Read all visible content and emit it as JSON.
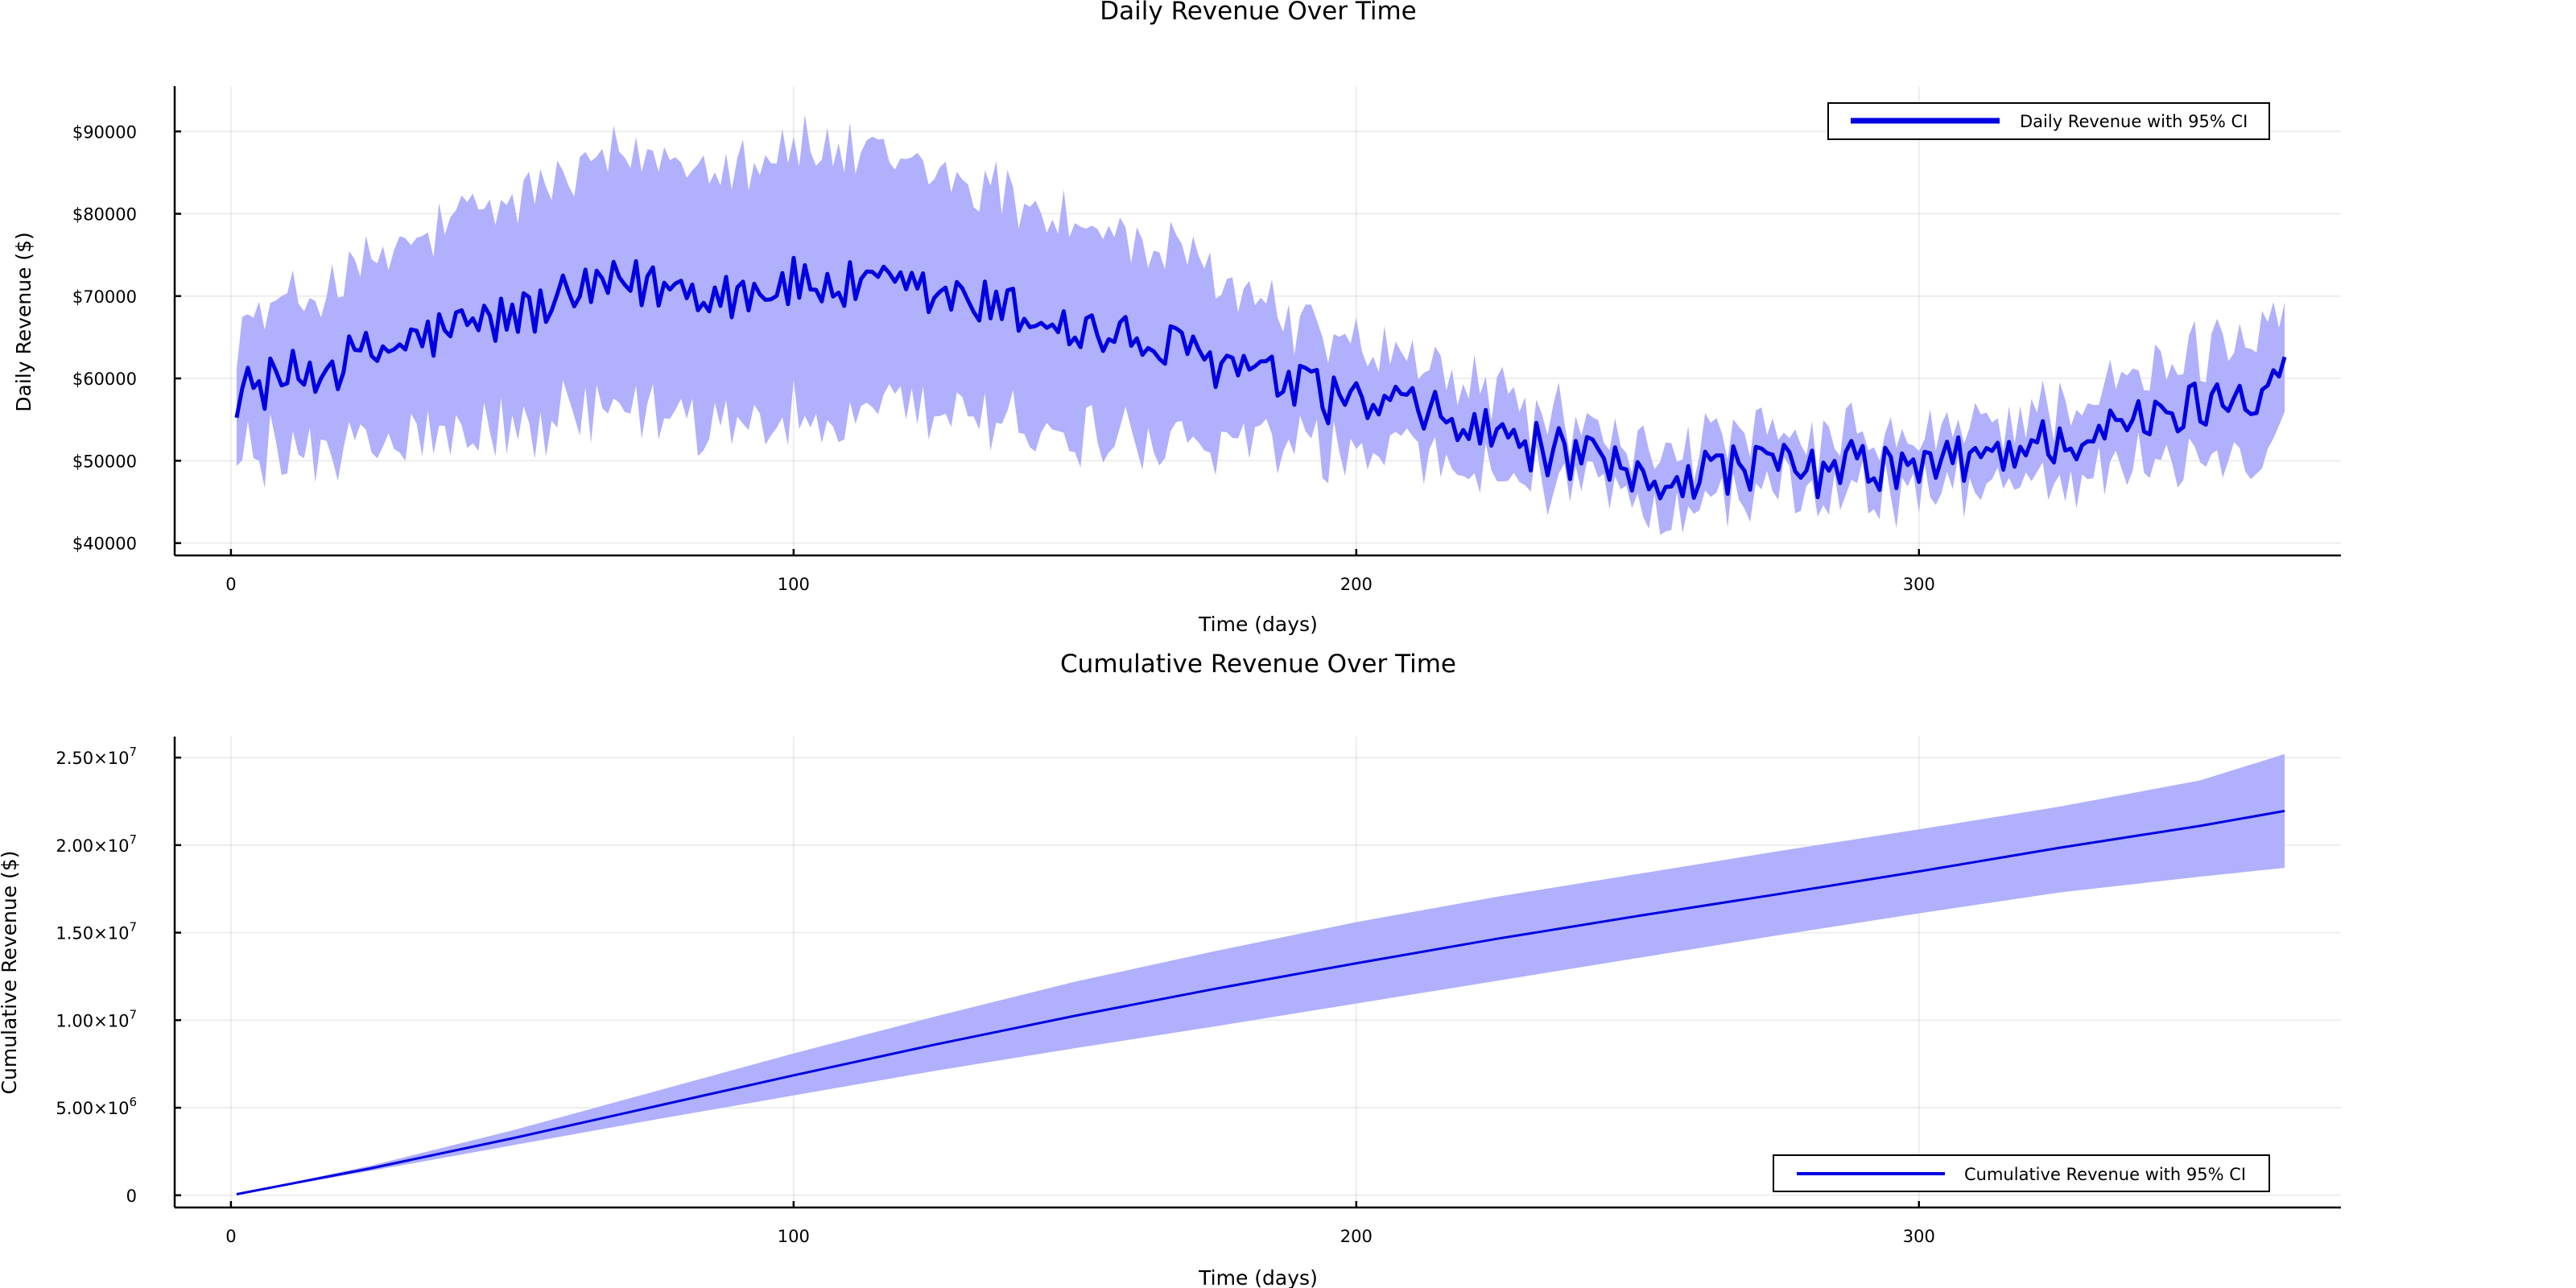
{
  "chart_data": [
    {
      "type": "line",
      "title": "Daily Revenue Over Time",
      "xlabel": "Time (days)",
      "ylabel": "Daily Revenue ($)",
      "xlim": [
        -10,
        375
      ],
      "ylim": [
        38500,
        95500
      ],
      "xticks": [
        0,
        100,
        200,
        300
      ],
      "xtick_labels": [
        "0",
        "100",
        "200",
        "300"
      ],
      "yticks": [
        40000,
        50000,
        60000,
        70000,
        80000,
        90000
      ],
      "ytick_labels": [
        "$40000",
        "$50000",
        "$60000",
        "$70000",
        "$80000",
        "$90000"
      ],
      "grid": true,
      "legend_position": "top-right",
      "colors": {
        "line": "#0000e1",
        "band": "#b0b0fc"
      },
      "series": [
        {
          "name": "Daily Revenue with 95% CI",
          "x_start": 1,
          "x_end": 365,
          "mean_anchors": [
            [
              1,
              58300
            ],
            [
              10,
              60000
            ],
            [
              20,
              62000
            ],
            [
              30,
              64000
            ],
            [
              40,
              66000
            ],
            [
              50,
              67500
            ],
            [
              60,
              69500
            ],
            [
              70,
              71500
            ],
            [
              80,
              71000
            ],
            [
              90,
              70500
            ],
            [
              100,
              71500
            ],
            [
              110,
              71000
            ],
            [
              120,
              70500
            ],
            [
              130,
              69500
            ],
            [
              140,
              68000
            ],
            [
              150,
              66000
            ],
            [
              160,
              64500
            ],
            [
              170,
              63000
            ],
            [
              180,
              61000
            ],
            [
              190,
              58500
            ],
            [
              200,
              57000
            ],
            [
              210,
              56000
            ],
            [
              220,
              54000
            ],
            [
              230,
              52000
            ],
            [
              240,
              50000
            ],
            [
              250,
              47500
            ],
            [
              260,
              48500
            ],
            [
              270,
              49500
            ],
            [
              280,
              48500
            ],
            [
              290,
              49500
            ],
            [
              300,
              48800
            ],
            [
              310,
              50500
            ],
            [
              320,
              52000
            ],
            [
              330,
              53000
            ],
            [
              340,
              54500
            ],
            [
              350,
              57000
            ],
            [
              360,
              59000
            ],
            [
              365,
              61500
            ]
          ],
          "ci_halfwidth_anchors": [
            [
              1,
              8000
            ],
            [
              20,
              10000
            ],
            [
              40,
              13000
            ],
            [
              60,
              15000
            ],
            [
              80,
              16000
            ],
            [
              100,
              16500
            ],
            [
              120,
              15500
            ],
            [
              140,
              14000
            ],
            [
              160,
              12000
            ],
            [
              175,
              10500
            ],
            [
              190,
              8000
            ],
            [
              210,
              6000
            ],
            [
              230,
              4500
            ],
            [
              250,
              3500
            ],
            [
              270,
              3200
            ],
            [
              290,
              3200
            ],
            [
              310,
              3500
            ],
            [
              330,
              4500
            ],
            [
              350,
              6000
            ],
            [
              365,
              8000
            ]
          ],
          "noise_amplitude": 3200,
          "ci_noise_amplitude": 2200
        }
      ]
    },
    {
      "type": "line",
      "title": "Cumulative Revenue Over Time",
      "xlabel": "Time (days)",
      "ylabel": "Cumulative Revenue ($)",
      "xlim": [
        -10,
        375
      ],
      "ylim": [
        -700000,
        26200000
      ],
      "xticks": [
        0,
        100,
        200,
        300
      ],
      "xtick_labels": [
        "0",
        "100",
        "200",
        "300"
      ],
      "yticks": [
        0,
        5000000,
        10000000,
        15000000,
        20000000,
        25000000
      ],
      "ytick_labels": [
        {
          "mantissa": "0",
          "exp": ""
        },
        {
          "mantissa": "5.00×10",
          "exp": "6"
        },
        {
          "mantissa": "1.00×10",
          "exp": "7"
        },
        {
          "mantissa": "1.50×10",
          "exp": "7"
        },
        {
          "mantissa": "2.00×10",
          "exp": "7"
        },
        {
          "mantissa": "2.50×10",
          "exp": "7"
        }
      ],
      "grid": true,
      "legend_position": "bottom-right",
      "colors": {
        "line": "#0000e1",
        "band": "#b0b0fc"
      },
      "series": [
        {
          "name": "Cumulative Revenue with 95% CI",
          "x": [
            1,
            25,
            50,
            75,
            100,
            125,
            150,
            175,
            200,
            225,
            250,
            275,
            300,
            325,
            350,
            365
          ],
          "values": [
            60000,
            1550000,
            3250000,
            5050000,
            6850000,
            8600000,
            10250000,
            11800000,
            13250000,
            14650000,
            15950000,
            17200000,
            18500000,
            19850000,
            21100000,
            21950000
          ],
          "upper": [
            60000,
            1700000,
            3700000,
            5900000,
            8100000,
            10200000,
            12200000,
            13950000,
            15600000,
            17050000,
            18350000,
            19650000,
            20900000,
            22200000,
            23700000,
            25200000
          ],
          "lower": [
            60000,
            1400000,
            2850000,
            4300000,
            5700000,
            7100000,
            8400000,
            9650000,
            10950000,
            12250000,
            13550000,
            14850000,
            16100000,
            17300000,
            18200000,
            18700000
          ]
        }
      ]
    }
  ]
}
